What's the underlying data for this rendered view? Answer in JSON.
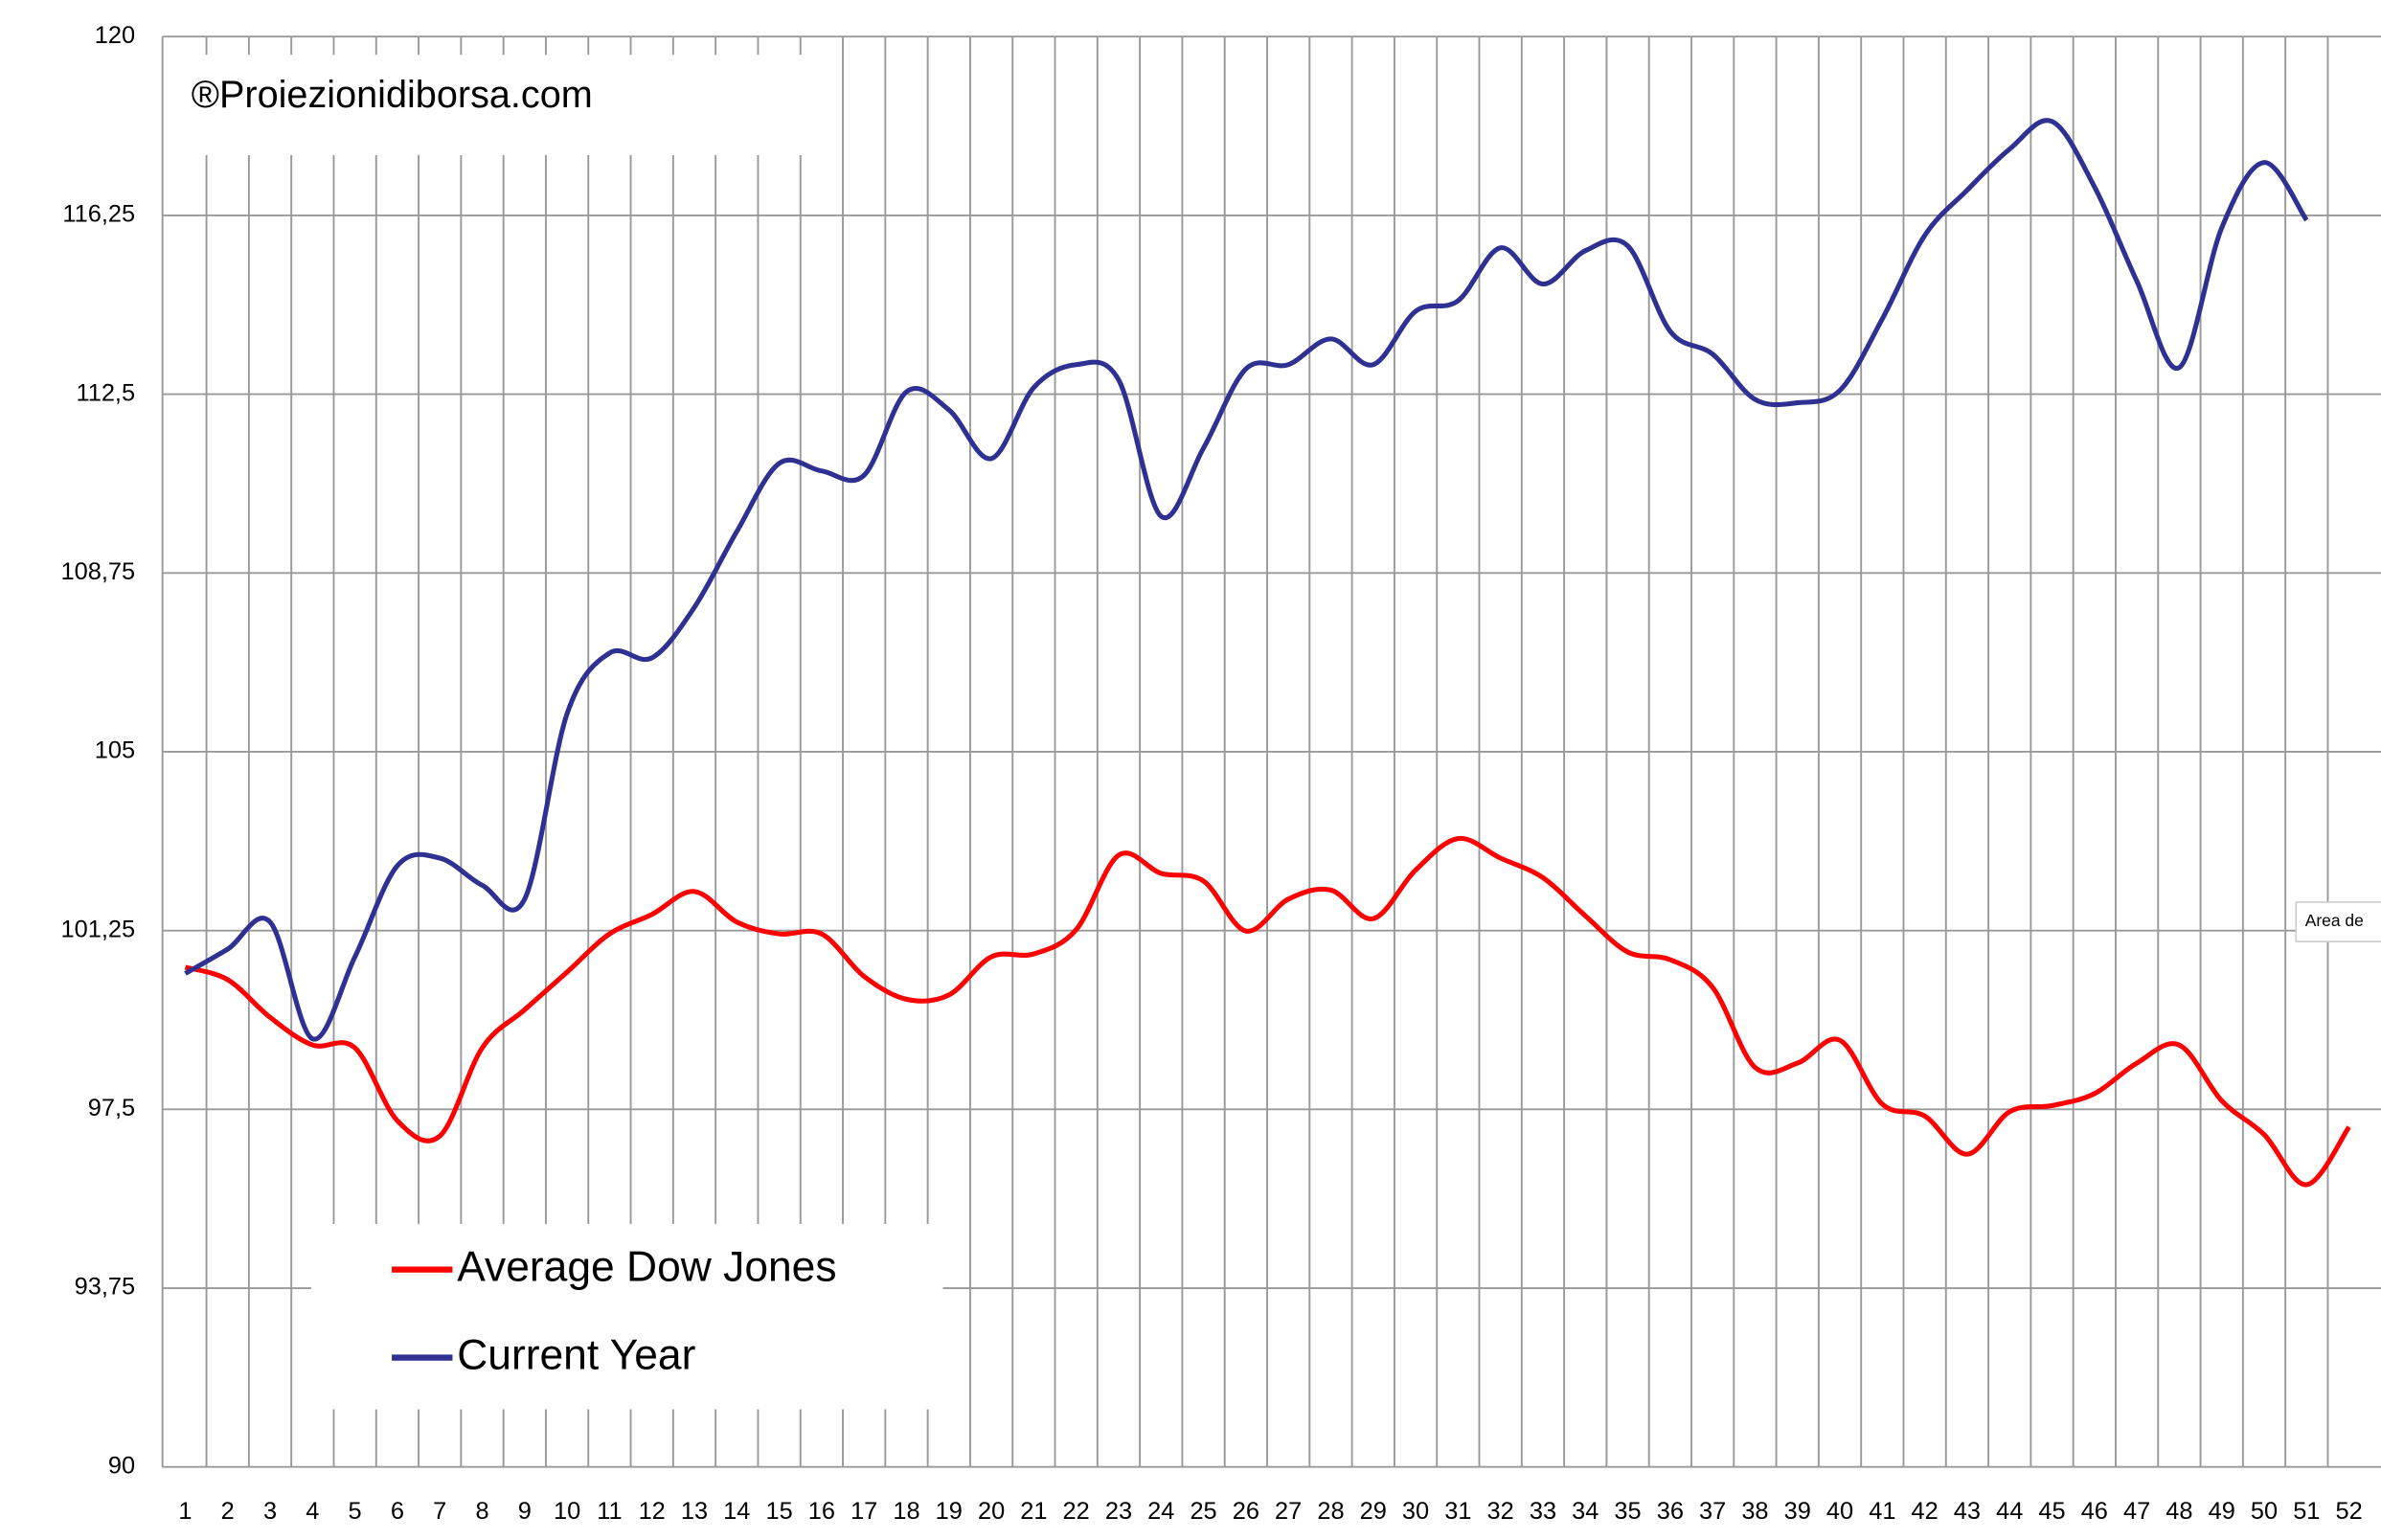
{
  "chart_data": {
    "type": "line",
    "watermark": "®Proiezionidiborsa.com",
    "tooltip": "Area de",
    "categories": [
      "1",
      "2",
      "3",
      "4",
      "5",
      "6",
      "7",
      "8",
      "9",
      "10",
      "11",
      "12",
      "13",
      "14",
      "15",
      "16",
      "17",
      "18",
      "19",
      "20",
      "21",
      "22",
      "23",
      "24",
      "25",
      "26",
      "27",
      "28",
      "29",
      "30",
      "31",
      "32",
      "33",
      "34",
      "35",
      "36",
      "37",
      "38",
      "39",
      "40",
      "41",
      "42",
      "43",
      "44",
      "45",
      "46",
      "47",
      "48",
      "49",
      "50",
      "51",
      "52"
    ],
    "series": [
      {
        "name": "Average Dow Jones",
        "color": "#ff0000",
        "values": [
          100.48,
          100.22,
          99.43,
          98.85,
          98.79,
          97.26,
          96.94,
          98.79,
          99.59,
          100.38,
          101.18,
          101.59,
          102.07,
          101.43,
          101.18,
          101.18,
          100.29,
          99.81,
          99.9,
          100.7,
          100.76,
          101.27,
          102.83,
          102.45,
          102.29,
          101.24,
          101.91,
          102.1,
          101.5,
          102.52,
          103.18,
          102.77,
          102.36,
          101.56,
          100.8,
          100.64,
          100.06,
          98.38,
          98.47,
          98.95,
          97.61,
          97.36,
          96.56,
          97.45,
          97.58,
          97.83,
          98.47,
          98.85,
          97.68,
          96.97,
          95.92,
          97.13
        ]
      },
      {
        "name": "Current Year",
        "color": "#2e3192",
        "values": [
          100.35,
          100.86,
          101.43,
          98.98,
          100.7,
          102.61,
          102.77,
          102.2,
          101.91,
          105.8,
          107.07,
          106.97,
          108.03,
          109.62,
          111.05,
          110.89,
          110.8,
          112.55,
          112.17,
          111.15,
          112.64,
          113.12,
          112.8,
          109.94,
          111.37,
          113.03,
          113.12,
          113.66,
          113.12,
          114.24,
          114.46,
          115.57,
          114.81,
          115.51,
          115.61,
          113.82,
          113.34,
          112.39,
          112.32,
          112.58,
          114.08,
          115.83,
          116.78,
          117.64,
          118.22,
          116.85,
          114.87,
          113.06,
          115.99,
          117.36,
          116.15,
          null
        ]
      }
    ],
    "ylim": [
      90,
      120
    ],
    "yticks": [
      90,
      {
        "value": 93.75,
        "label": "93,75"
      },
      {
        "value": 97.5,
        "label": "97,5"
      },
      {
        "value": 101.25,
        "label": "101,25"
      },
      105,
      {
        "value": 108.75,
        "label": "108,75"
      },
      {
        "value": 112.5,
        "label": "112,5"
      },
      {
        "value": 116.25,
        "label": "116,25"
      },
      120
    ],
    "grid": true
  }
}
